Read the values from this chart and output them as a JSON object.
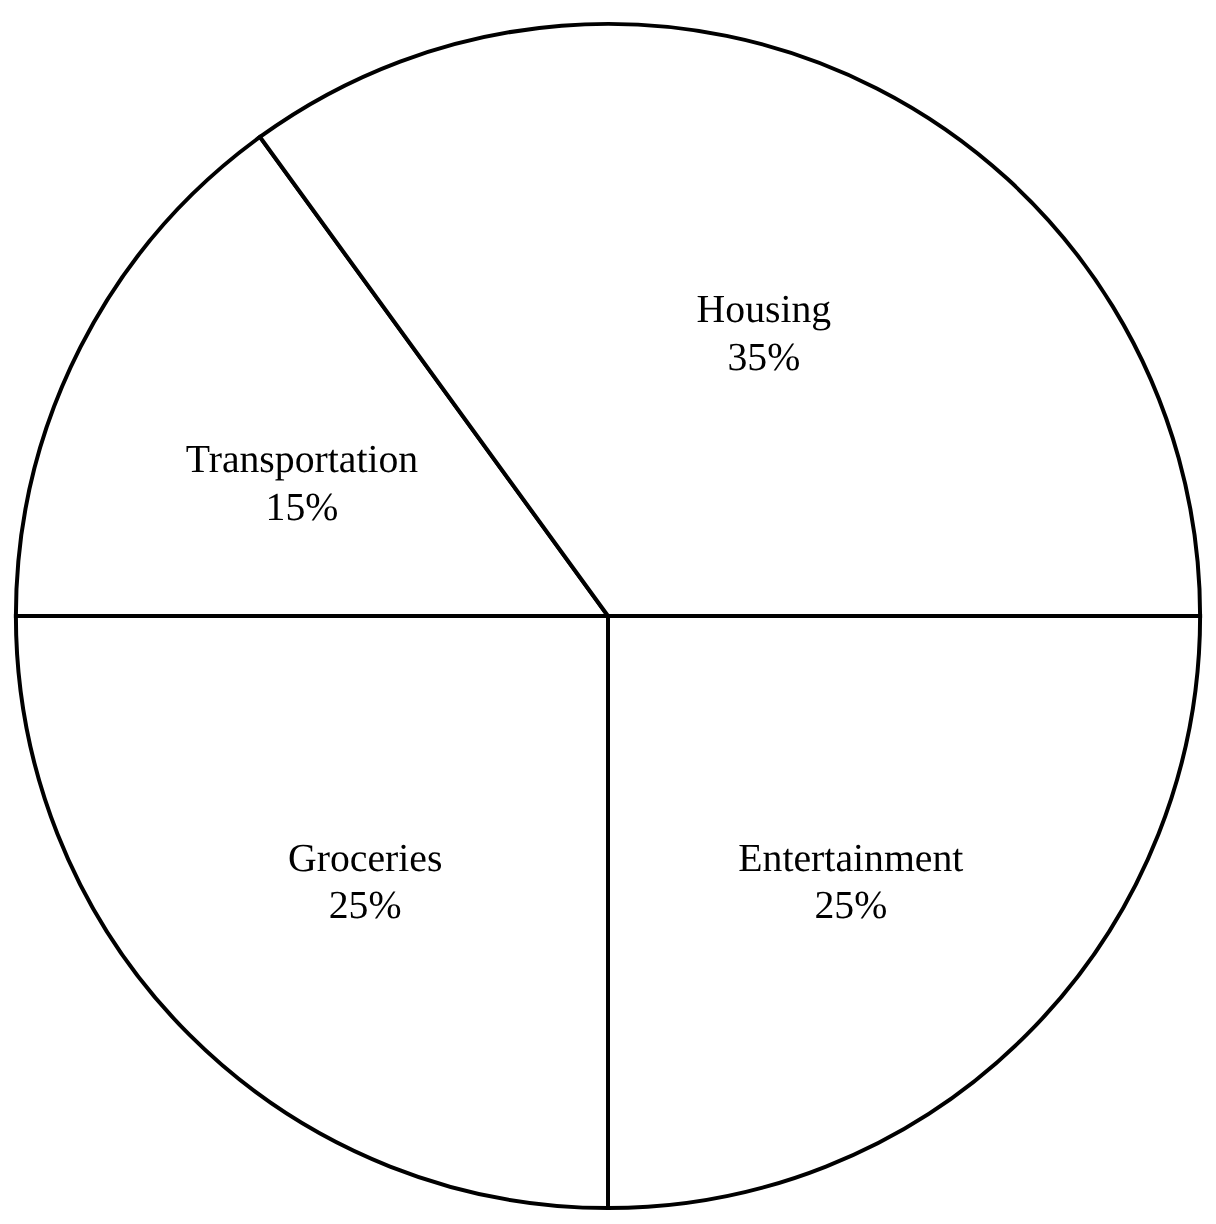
{
  "chart_data": {
    "type": "pie",
    "categories": [
      "Entertainment",
      "Groceries",
      "Transportation",
      "Housing"
    ],
    "values": [
      25,
      25,
      15,
      35
    ],
    "value_labels": [
      "25%",
      "25%",
      "15%",
      "35%"
    ],
    "colors": [
      "#ffffff",
      "#ffffff",
      "#ffffff",
      "#ffffff"
    ]
  }
}
